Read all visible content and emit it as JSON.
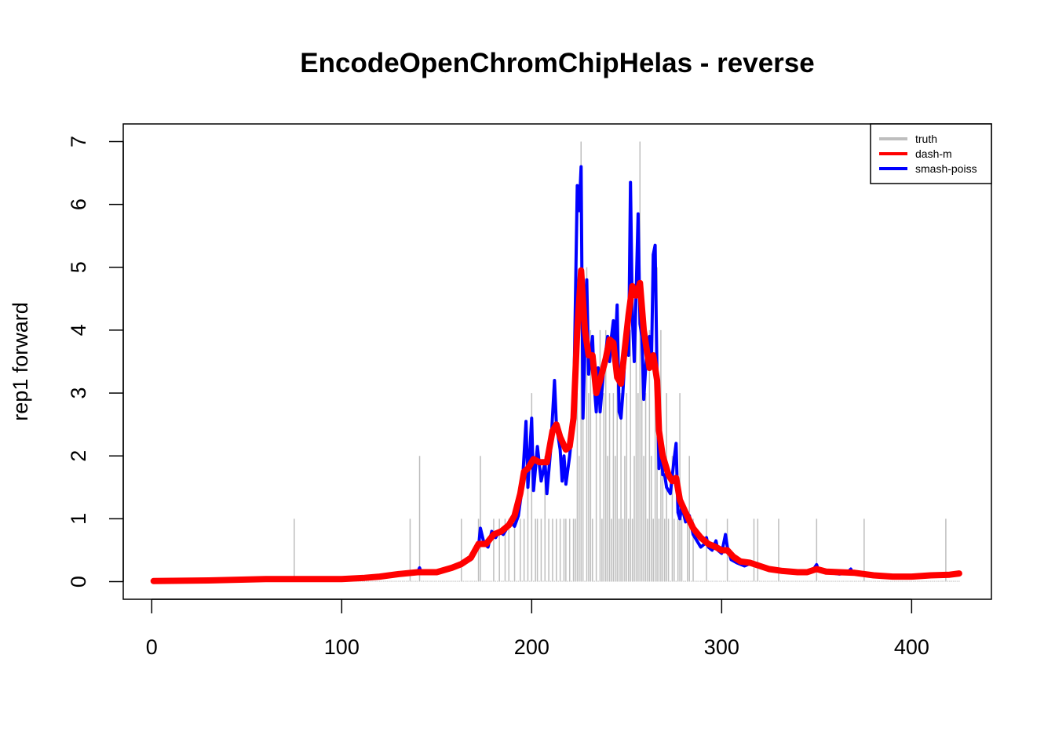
{
  "chart_data": {
    "type": "line",
    "title": "EncodeOpenChromChipHelas - reverse",
    "xlabel": "",
    "ylabel": "rep1 forward",
    "xlim": [
      -15,
      442
    ],
    "ylim": [
      -0.28,
      7.28
    ],
    "x_ticks": [
      "0",
      "100",
      "200",
      "300",
      "400"
    ],
    "y_ticks": [
      "0",
      "1",
      "2",
      "3",
      "4",
      "5",
      "6",
      "7"
    ],
    "legend_position": "top-right",
    "legend": [
      {
        "label": "truth",
        "color": "#bebebe"
      },
      {
        "label": "dash-m",
        "color": "#ff0000"
      },
      {
        "label": "smash-poiss",
        "color": "#0000ff"
      }
    ],
    "truth": {
      "name": "truth",
      "color": "#bebebe",
      "x_range": [
        1,
        425
      ],
      "nonzero": [
        [
          75,
          1
        ],
        [
          136,
          1
        ],
        [
          141,
          2
        ],
        [
          163,
          1
        ],
        [
          172,
          1
        ],
        [
          173,
          2
        ],
        [
          180,
          1
        ],
        [
          183,
          1
        ],
        [
          186,
          1
        ],
        [
          188,
          1
        ],
        [
          191,
          1
        ],
        [
          194,
          1
        ],
        [
          196,
          1
        ],
        [
          198,
          2
        ],
        [
          200,
          3
        ],
        [
          202,
          1
        ],
        [
          203,
          1
        ],
        [
          205,
          1
        ],
        [
          207,
          2
        ],
        [
          209,
          1
        ],
        [
          211,
          1
        ],
        [
          213,
          1
        ],
        [
          215,
          1
        ],
        [
          217,
          1
        ],
        [
          218,
          1
        ],
        [
          220,
          1
        ],
        [
          222,
          1
        ],
        [
          223,
          1
        ],
        [
          224,
          3
        ],
        [
          225,
          2
        ],
        [
          226,
          7
        ],
        [
          227,
          3
        ],
        [
          229,
          5
        ],
        [
          230,
          3
        ],
        [
          231,
          4
        ],
        [
          232,
          1
        ],
        [
          234,
          3
        ],
        [
          236,
          4
        ],
        [
          237,
          1
        ],
        [
          238,
          3
        ],
        [
          239,
          4
        ],
        [
          240,
          2
        ],
        [
          241,
          3
        ],
        [
          242,
          1
        ],
        [
          243,
          3
        ],
        [
          244,
          2
        ],
        [
          245,
          4
        ],
        [
          246,
          1
        ],
        [
          247,
          3
        ],
        [
          248,
          1
        ],
        [
          249,
          2
        ],
        [
          250,
          3
        ],
        [
          251,
          1
        ],
        [
          252,
          4
        ],
        [
          253,
          1
        ],
        [
          254,
          2
        ],
        [
          255,
          5
        ],
        [
          256,
          3
        ],
        [
          257,
          7
        ],
        [
          258,
          4
        ],
        [
          259,
          2
        ],
        [
          260,
          3
        ],
        [
          261,
          1
        ],
        [
          262,
          4
        ],
        [
          263,
          2
        ],
        [
          264,
          1
        ],
        [
          265,
          3
        ],
        [
          266,
          5
        ],
        [
          267,
          1
        ],
        [
          268,
          4
        ],
        [
          269,
          2
        ],
        [
          270,
          1
        ],
        [
          271,
          3
        ],
        [
          272,
          1
        ],
        [
          274,
          2
        ],
        [
          275,
          1
        ],
        [
          277,
          1
        ],
        [
          278,
          3
        ],
        [
          279,
          1
        ],
        [
          282,
          1
        ],
        [
          283,
          2
        ],
        [
          285,
          1
        ],
        [
          292,
          1
        ],
        [
          303,
          1
        ],
        [
          317,
          1
        ],
        [
          319,
          1
        ],
        [
          330,
          1
        ],
        [
          350,
          1
        ],
        [
          375,
          1
        ],
        [
          418,
          1
        ]
      ]
    },
    "series": [
      {
        "name": "smash-poiss",
        "color": "#0000ff",
        "points": [
          [
            1,
            0.01
          ],
          [
            60,
            0.04
          ],
          [
            100,
            0.04
          ],
          [
            120,
            0.08
          ],
          [
            135,
            0.13
          ],
          [
            140,
            0.15
          ],
          [
            141,
            0.22
          ],
          [
            142,
            0.14
          ],
          [
            150,
            0.15
          ],
          [
            158,
            0.22
          ],
          [
            163,
            0.28
          ],
          [
            168,
            0.35
          ],
          [
            170,
            0.45
          ],
          [
            172,
            0.55
          ],
          [
            173,
            0.85
          ],
          [
            175,
            0.6
          ],
          [
            177,
            0.55
          ],
          [
            179,
            0.8
          ],
          [
            181,
            0.7
          ],
          [
            183,
            0.8
          ],
          [
            185,
            0.75
          ],
          [
            187,
            0.85
          ],
          [
            189,
            0.95
          ],
          [
            191,
            0.88
          ],
          [
            193,
            1.05
          ],
          [
            195,
            1.5
          ],
          [
            197,
            2.55
          ],
          [
            198,
            1.5
          ],
          [
            200,
            2.6
          ],
          [
            201,
            1.45
          ],
          [
            203,
            2.15
          ],
          [
            205,
            1.6
          ],
          [
            207,
            1.9
          ],
          [
            208,
            1.4
          ],
          [
            210,
            2.1
          ],
          [
            212,
            3.2
          ],
          [
            213,
            2.5
          ],
          [
            215,
            2.1
          ],
          [
            216,
            1.6
          ],
          [
            217,
            2.0
          ],
          [
            218,
            1.55
          ],
          [
            220,
            2.0
          ],
          [
            222,
            2.6
          ],
          [
            224,
            6.3
          ],
          [
            225,
            5.9
          ],
          [
            226,
            6.6
          ],
          [
            227,
            2.6
          ],
          [
            229,
            4.8
          ],
          [
            230,
            3.3
          ],
          [
            232,
            3.9
          ],
          [
            233,
            3.1
          ],
          [
            234,
            2.7
          ],
          [
            235,
            3.4
          ],
          [
            236,
            2.7
          ],
          [
            238,
            3.4
          ],
          [
            240,
            3.9
          ],
          [
            241,
            3.5
          ],
          [
            242,
            3.9
          ],
          [
            243,
            4.15
          ],
          [
            244,
            3.7
          ],
          [
            245,
            4.4
          ],
          [
            246,
            2.7
          ],
          [
            247,
            2.6
          ],
          [
            248,
            3.0
          ],
          [
            250,
            4.1
          ],
          [
            251,
            3.6
          ],
          [
            252,
            6.35
          ],
          [
            253,
            4.2
          ],
          [
            254,
            3.5
          ],
          [
            255,
            4.6
          ],
          [
            256,
            5.85
          ],
          [
            257,
            4.1
          ],
          [
            258,
            3.9
          ],
          [
            259,
            2.9
          ],
          [
            260,
            3.4
          ],
          [
            261,
            3.8
          ],
          [
            262,
            3.9
          ],
          [
            263,
            3.4
          ],
          [
            264,
            5.2
          ],
          [
            265,
            5.35
          ],
          [
            266,
            3.2
          ],
          [
            267,
            1.8
          ],
          [
            268,
            2.3
          ],
          [
            269,
            1.7
          ],
          [
            270,
            1.7
          ],
          [
            271,
            1.5
          ],
          [
            273,
            1.4
          ],
          [
            275,
            1.95
          ],
          [
            276,
            2.2
          ],
          [
            277,
            1.1
          ],
          [
            278,
            1.0
          ],
          [
            279,
            1.2
          ],
          [
            281,
            0.95
          ],
          [
            283,
            1.05
          ],
          [
            285,
            0.75
          ],
          [
            287,
            0.65
          ],
          [
            289,
            0.55
          ],
          [
            291,
            0.6
          ],
          [
            292,
            0.7
          ],
          [
            293,
            0.55
          ],
          [
            295,
            0.5
          ],
          [
            297,
            0.65
          ],
          [
            298,
            0.5
          ],
          [
            300,
            0.45
          ],
          [
            302,
            0.75
          ],
          [
            303,
            0.55
          ],
          [
            305,
            0.35
          ],
          [
            308,
            0.3
          ],
          [
            312,
            0.25
          ],
          [
            316,
            0.3
          ],
          [
            320,
            0.25
          ],
          [
            325,
            0.2
          ],
          [
            330,
            0.18
          ],
          [
            335,
            0.15
          ],
          [
            340,
            0.13
          ],
          [
            345,
            0.15
          ],
          [
            348,
            0.18
          ],
          [
            350,
            0.27
          ],
          [
            351,
            0.18
          ],
          [
            355,
            0.15
          ],
          [
            362,
            0.12
          ],
          [
            366,
            0.14
          ],
          [
            368,
            0.2
          ],
          [
            369,
            0.13
          ],
          [
            372,
            0.12
          ],
          [
            380,
            0.1
          ],
          [
            390,
            0.08
          ],
          [
            400,
            0.08
          ],
          [
            410,
            0.1
          ],
          [
            420,
            0.12
          ],
          [
            425,
            0.12
          ]
        ]
      },
      {
        "name": "dash-m",
        "color": "#ff0000",
        "points": [
          [
            1,
            0.01
          ],
          [
            30,
            0.02
          ],
          [
            60,
            0.04
          ],
          [
            100,
            0.04
          ],
          [
            112,
            0.06
          ],
          [
            120,
            0.08
          ],
          [
            130,
            0.12
          ],
          [
            140,
            0.15
          ],
          [
            150,
            0.15
          ],
          [
            158,
            0.22
          ],
          [
            163,
            0.28
          ],
          [
            168,
            0.38
          ],
          [
            172,
            0.6
          ],
          [
            176,
            0.6
          ],
          [
            180,
            0.75
          ],
          [
            184,
            0.8
          ],
          [
            188,
            0.9
          ],
          [
            191,
            1.05
          ],
          [
            194,
            1.4
          ],
          [
            196,
            1.75
          ],
          [
            198,
            1.8
          ],
          [
            201,
            1.95
          ],
          [
            204,
            1.9
          ],
          [
            208,
            1.9
          ],
          [
            211,
            2.4
          ],
          [
            213,
            2.5
          ],
          [
            215,
            2.3
          ],
          [
            218,
            2.1
          ],
          [
            220,
            2.15
          ],
          [
            222,
            2.6
          ],
          [
            224,
            4.0
          ],
          [
            226,
            4.95
          ],
          [
            228,
            4.0
          ],
          [
            230,
            3.6
          ],
          [
            232,
            3.6
          ],
          [
            234,
            3.0
          ],
          [
            236,
            3.2
          ],
          [
            239,
            3.55
          ],
          [
            241,
            3.85
          ],
          [
            243,
            3.8
          ],
          [
            245,
            3.25
          ],
          [
            247,
            3.15
          ],
          [
            249,
            3.7
          ],
          [
            251,
            4.25
          ],
          [
            253,
            4.7
          ],
          [
            255,
            4.55
          ],
          [
            257,
            4.75
          ],
          [
            259,
            4.0
          ],
          [
            261,
            3.6
          ],
          [
            262,
            3.4
          ],
          [
            264,
            3.6
          ],
          [
            266,
            3.2
          ],
          [
            267,
            2.4
          ],
          [
            269,
            2.0
          ],
          [
            272,
            1.7
          ],
          [
            274,
            1.6
          ],
          [
            276,
            1.65
          ],
          [
            278,
            1.3
          ],
          [
            281,
            1.1
          ],
          [
            285,
            0.85
          ],
          [
            289,
            0.7
          ],
          [
            293,
            0.6
          ],
          [
            297,
            0.55
          ],
          [
            300,
            0.5
          ],
          [
            303,
            0.5
          ],
          [
            306,
            0.4
          ],
          [
            310,
            0.32
          ],
          [
            315,
            0.3
          ],
          [
            320,
            0.25
          ],
          [
            325,
            0.2
          ],
          [
            332,
            0.17
          ],
          [
            340,
            0.15
          ],
          [
            345,
            0.15
          ],
          [
            350,
            0.2
          ],
          [
            355,
            0.16
          ],
          [
            362,
            0.15
          ],
          [
            370,
            0.14
          ],
          [
            380,
            0.1
          ],
          [
            390,
            0.08
          ],
          [
            400,
            0.08
          ],
          [
            410,
            0.1
          ],
          [
            420,
            0.11
          ],
          [
            425,
            0.13
          ]
        ]
      }
    ]
  }
}
